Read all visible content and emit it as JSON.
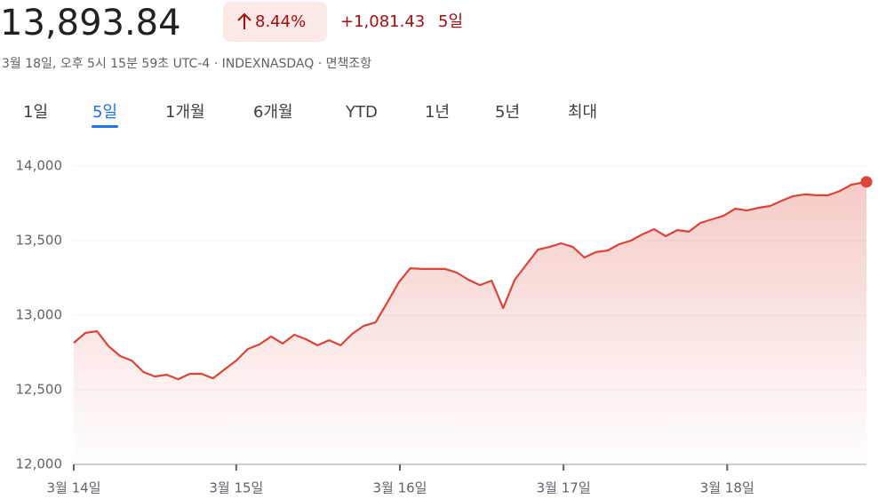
{
  "header": {
    "price": "13,893.84",
    "change_percent": "8.44%",
    "change": "+1,081.43",
    "period": "5일",
    "subtitle": "3월 18일, 오후 5시 15분 59초 UTC-4 · INDEXNASDAQ · 면책조항"
  },
  "tabs": {
    "items": [
      "1일",
      "5일",
      "1개월",
      "6개월",
      "YTD",
      "1년",
      "5년",
      "최대"
    ],
    "selected": 1
  },
  "chart_data": {
    "type": "area",
    "color": "#db4437",
    "x": [
      0,
      1,
      2,
      3,
      4,
      5,
      6,
      7,
      8,
      9,
      10,
      11,
      12,
      13,
      14,
      15,
      16,
      17,
      18,
      19,
      20,
      21,
      22,
      23,
      24,
      25,
      26,
      27,
      28,
      29,
      30,
      31,
      32,
      33,
      34,
      35,
      36,
      37,
      38,
      39,
      40,
      41,
      42,
      43,
      44,
      45,
      46,
      47,
      48,
      49,
      50,
      51,
      52,
      53,
      54,
      55,
      56,
      57,
      58,
      59,
      60,
      61,
      62,
      63,
      64,
      65,
      66,
      67,
      68.3
    ],
    "values": [
      12815,
      12881,
      12893,
      12792,
      12726,
      12696,
      12619,
      12589,
      12601,
      12571,
      12607,
      12607,
      12577,
      12637,
      12696,
      12774,
      12804,
      12857,
      12810,
      12869,
      12839,
      12798,
      12833,
      12798,
      12875,
      12929,
      12952,
      13083,
      13220,
      13315,
      13310,
      13310,
      13310,
      13286,
      13238,
      13202,
      13232,
      13048,
      13238,
      13339,
      13440,
      13458,
      13482,
      13458,
      13387,
      13423,
      13434,
      13476,
      13500,
      13542,
      13577,
      13530,
      13571,
      13560,
      13619,
      13643,
      13667,
      13714,
      13702,
      13720,
      13732,
      13768,
      13798,
      13810,
      13804,
      13804,
      13833,
      13875,
      13893.84
    ],
    "xlim": [
      0,
      68.3
    ],
    "xticks": [
      {
        "value": 0,
        "label": "3월 14일"
      },
      {
        "value": 14,
        "label": "3월 15일"
      },
      {
        "value": 28.1,
        "label": "3월 16일"
      },
      {
        "value": 42.2,
        "label": "3월 17일"
      },
      {
        "value": 56.3,
        "label": "3월 18일"
      }
    ],
    "ylim": [
      12000,
      14000
    ],
    "yticks": [
      {
        "value": 12000,
        "label": "12,000"
      },
      {
        "value": 12500,
        "label": "12,500"
      },
      {
        "value": 13000,
        "label": "13,000"
      },
      {
        "value": 13500,
        "label": "13,500"
      },
      {
        "value": 14000,
        "label": "14,000"
      }
    ],
    "grid": true
  }
}
